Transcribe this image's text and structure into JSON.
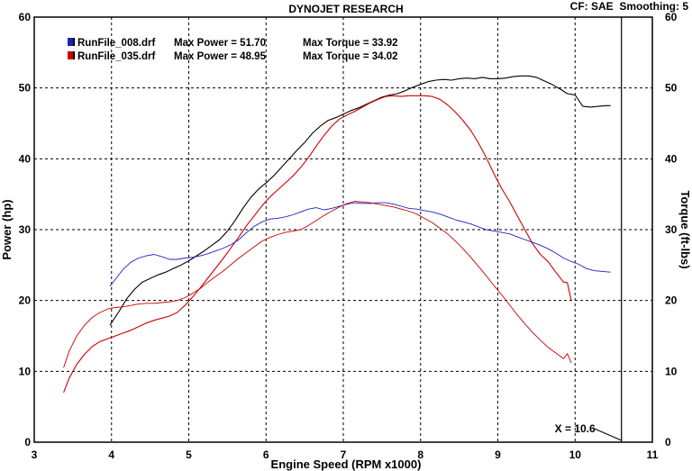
{
  "chart_data": {
    "type": "line",
    "title": "DYNOJET RESEARCH",
    "header_right": "CF: SAE  Smoothing: 5",
    "xlabel": "Engine Speed (RPM x1000)",
    "ylabel_left": "Power (hp)",
    "ylabel_right": "Torque (ft-lbs)",
    "xlim": [
      3,
      11
    ],
    "ylim": [
      0,
      60
    ],
    "x_ticks": [
      "3",
      "4",
      "5",
      "6",
      "7",
      "8",
      "9",
      "10",
      "11"
    ],
    "y_ticks": [
      "0",
      "10",
      "20",
      "30",
      "40",
      "50",
      "60"
    ],
    "grid": true,
    "legend_position": "top-left",
    "legend": [
      {
        "file": "RunFile_008.drf",
        "max_power": "Max Power = 51.70",
        "max_torque": "Max Torque = 33.92",
        "color": "#2020c0"
      },
      {
        "file": "RunFile_035.drf",
        "max_power": "Max Power = 48.95",
        "max_torque": "Max Torque = 34.02",
        "color": "#cc0000"
      }
    ],
    "cursor": {
      "label": "X = 10.6",
      "x": 10.6
    },
    "series": [
      {
        "name": "RunFile_008.drf",
        "measure": "Power",
        "color": "#000000",
        "points": [
          [
            3.98,
            16.5
          ],
          [
            4.1,
            18.5
          ],
          [
            4.2,
            20.3
          ],
          [
            4.3,
            21.6
          ],
          [
            4.4,
            22.6
          ],
          [
            4.5,
            23.1
          ],
          [
            4.6,
            23.6
          ],
          [
            4.7,
            24.0
          ],
          [
            4.8,
            24.5
          ],
          [
            4.9,
            25.0
          ],
          [
            5.0,
            25.6
          ],
          [
            5.1,
            26.3
          ],
          [
            5.2,
            27.0
          ],
          [
            5.3,
            27.8
          ],
          [
            5.4,
            28.6
          ],
          [
            5.5,
            29.8
          ],
          [
            5.6,
            31.3
          ],
          [
            5.7,
            33.0
          ],
          [
            5.8,
            34.5
          ],
          [
            5.9,
            35.7
          ],
          [
            6.0,
            36.6
          ],
          [
            6.1,
            37.6
          ],
          [
            6.2,
            38.8
          ],
          [
            6.3,
            40.0
          ],
          [
            6.4,
            41.2
          ],
          [
            6.5,
            42.3
          ],
          [
            6.6,
            43.6
          ],
          [
            6.7,
            44.6
          ],
          [
            6.8,
            45.4
          ],
          [
            6.9,
            45.8
          ],
          [
            7.0,
            46.3
          ],
          [
            7.1,
            46.8
          ],
          [
            7.2,
            47.2
          ],
          [
            7.3,
            47.7
          ],
          [
            7.4,
            48.2
          ],
          [
            7.5,
            48.7
          ],
          [
            7.6,
            49.0
          ],
          [
            7.7,
            49.2
          ],
          [
            7.8,
            49.6
          ],
          [
            7.9,
            50.1
          ],
          [
            8.0,
            50.5
          ],
          [
            8.1,
            50.9
          ],
          [
            8.2,
            51.1
          ],
          [
            8.3,
            51.2
          ],
          [
            8.4,
            51.1
          ],
          [
            8.5,
            51.3
          ],
          [
            8.6,
            51.4
          ],
          [
            8.7,
            51.3
          ],
          [
            8.8,
            51.5
          ],
          [
            8.9,
            51.3
          ],
          [
            9.0,
            51.3
          ],
          [
            9.1,
            51.4
          ],
          [
            9.2,
            51.6
          ],
          [
            9.3,
            51.7
          ],
          [
            9.4,
            51.7
          ],
          [
            9.5,
            51.5
          ],
          [
            9.6,
            51.0
          ],
          [
            9.7,
            50.5
          ],
          [
            9.8,
            49.9
          ],
          [
            9.9,
            49.2
          ],
          [
            10.0,
            49.0
          ],
          [
            10.1,
            47.4
          ],
          [
            10.2,
            47.3
          ],
          [
            10.3,
            47.4
          ],
          [
            10.4,
            47.5
          ],
          [
            10.46,
            47.5
          ]
        ]
      },
      {
        "name": "RunFile_035.drf",
        "measure": "Power",
        "color": "#cc0000",
        "points": [
          [
            3.38,
            7.0
          ],
          [
            3.45,
            9.0
          ],
          [
            3.55,
            11.0
          ],
          [
            3.65,
            12.4
          ],
          [
            3.75,
            13.5
          ],
          [
            3.85,
            14.2
          ],
          [
            3.95,
            14.6
          ],
          [
            4.05,
            15.0
          ],
          [
            4.15,
            15.4
          ],
          [
            4.25,
            15.8
          ],
          [
            4.35,
            16.3
          ],
          [
            4.45,
            16.8
          ],
          [
            4.55,
            17.2
          ],
          [
            4.65,
            17.5
          ],
          [
            4.75,
            17.8
          ],
          [
            4.85,
            18.3
          ],
          [
            4.95,
            19.3
          ],
          [
            5.05,
            20.5
          ],
          [
            5.15,
            21.8
          ],
          [
            5.25,
            23.2
          ],
          [
            5.35,
            24.6
          ],
          [
            5.45,
            26.0
          ],
          [
            5.55,
            27.5
          ],
          [
            5.65,
            29.0
          ],
          [
            5.75,
            30.6
          ],
          [
            5.85,
            32.0
          ],
          [
            5.95,
            33.4
          ],
          [
            6.05,
            34.6
          ],
          [
            6.15,
            35.6
          ],
          [
            6.25,
            36.6
          ],
          [
            6.35,
            37.6
          ],
          [
            6.45,
            38.8
          ],
          [
            6.55,
            40.2
          ],
          [
            6.65,
            41.8
          ],
          [
            6.75,
            43.3
          ],
          [
            6.85,
            44.6
          ],
          [
            6.95,
            45.6
          ],
          [
            7.05,
            46.2
          ],
          [
            7.15,
            46.7
          ],
          [
            7.25,
            47.3
          ],
          [
            7.35,
            47.9
          ],
          [
            7.45,
            48.4
          ],
          [
            7.55,
            48.8
          ],
          [
            7.65,
            48.9
          ],
          [
            7.75,
            48.8
          ],
          [
            7.85,
            48.9
          ],
          [
            7.95,
            48.9
          ],
          [
            8.05,
            48.9
          ],
          [
            8.15,
            48.8
          ],
          [
            8.25,
            48.4
          ],
          [
            8.35,
            47.6
          ],
          [
            8.45,
            46.6
          ],
          [
            8.55,
            45.4
          ],
          [
            8.65,
            44.0
          ],
          [
            8.75,
            42.2
          ],
          [
            8.85,
            40.2
          ],
          [
            8.95,
            37.9
          ],
          [
            9.05,
            35.8
          ],
          [
            9.15,
            34.0
          ],
          [
            9.25,
            32.0
          ],
          [
            9.35,
            30.0
          ],
          [
            9.45,
            28.0
          ],
          [
            9.55,
            26.5
          ],
          [
            9.65,
            25.5
          ],
          [
            9.75,
            24.0
          ],
          [
            9.85,
            22.6
          ],
          [
            9.9,
            22.5
          ],
          [
            9.95,
            20.0
          ]
        ]
      },
      {
        "name": "RunFile_008.drf",
        "measure": "Torque",
        "color": "#2020c0",
        "points": [
          [
            3.98,
            22.0
          ],
          [
            4.05,
            23.0
          ],
          [
            4.15,
            24.4
          ],
          [
            4.25,
            25.4
          ],
          [
            4.35,
            26.0
          ],
          [
            4.45,
            26.3
          ],
          [
            4.55,
            26.5
          ],
          [
            4.65,
            26.2
          ],
          [
            4.75,
            25.8
          ],
          [
            4.85,
            25.8
          ],
          [
            4.95,
            26.0
          ],
          [
            5.05,
            26.1
          ],
          [
            5.15,
            26.3
          ],
          [
            5.25,
            26.6
          ],
          [
            5.35,
            27.0
          ],
          [
            5.45,
            27.4
          ],
          [
            5.55,
            27.9
          ],
          [
            5.65,
            28.6
          ],
          [
            5.75,
            29.6
          ],
          [
            5.85,
            30.5
          ],
          [
            5.95,
            31.1
          ],
          [
            6.05,
            31.5
          ],
          [
            6.15,
            31.6
          ],
          [
            6.25,
            31.8
          ],
          [
            6.35,
            32.1
          ],
          [
            6.45,
            32.5
          ],
          [
            6.55,
            32.9
          ],
          [
            6.65,
            33.1
          ],
          [
            6.75,
            32.8
          ],
          [
            6.85,
            33.0
          ],
          [
            6.95,
            33.3
          ],
          [
            7.05,
            33.6
          ],
          [
            7.15,
            33.8
          ],
          [
            7.25,
            33.7
          ],
          [
            7.35,
            33.7
          ],
          [
            7.45,
            33.8
          ],
          [
            7.55,
            33.8
          ],
          [
            7.65,
            33.6
          ],
          [
            7.75,
            33.3
          ],
          [
            7.85,
            33.0
          ],
          [
            7.95,
            32.9
          ],
          [
            8.05,
            32.7
          ],
          [
            8.15,
            32.5
          ],
          [
            8.25,
            32.2
          ],
          [
            8.35,
            31.8
          ],
          [
            8.45,
            31.4
          ],
          [
            8.55,
            31.1
          ],
          [
            8.65,
            30.8
          ],
          [
            8.75,
            30.4
          ],
          [
            8.85,
            30.0
          ],
          [
            8.95,
            29.8
          ],
          [
            9.05,
            29.6
          ],
          [
            9.15,
            29.4
          ],
          [
            9.25,
            29.0
          ],
          [
            9.35,
            28.6
          ],
          [
            9.45,
            28.2
          ],
          [
            9.55,
            27.8
          ],
          [
            9.65,
            27.3
          ],
          [
            9.75,
            26.7
          ],
          [
            9.85,
            26.0
          ],
          [
            9.95,
            25.5
          ],
          [
            10.05,
            25.1
          ],
          [
            10.15,
            24.5
          ],
          [
            10.25,
            24.2
          ],
          [
            10.35,
            24.1
          ],
          [
            10.46,
            24.0
          ]
        ]
      },
      {
        "name": "RunFile_035.drf",
        "measure": "Torque",
        "color": "#cc0000",
        "points": [
          [
            3.38,
            10.5
          ],
          [
            3.45,
            12.8
          ],
          [
            3.55,
            15.0
          ],
          [
            3.65,
            16.5
          ],
          [
            3.75,
            17.6
          ],
          [
            3.85,
            18.3
          ],
          [
            3.95,
            18.8
          ],
          [
            4.05,
            19.0
          ],
          [
            4.15,
            19.1
          ],
          [
            4.25,
            19.3
          ],
          [
            4.35,
            19.5
          ],
          [
            4.45,
            19.6
          ],
          [
            4.55,
            19.6
          ],
          [
            4.65,
            19.7
          ],
          [
            4.75,
            19.8
          ],
          [
            4.85,
            20.0
          ],
          [
            4.95,
            20.4
          ],
          [
            5.05,
            21.0
          ],
          [
            5.15,
            21.7
          ],
          [
            5.25,
            22.6
          ],
          [
            5.35,
            23.4
          ],
          [
            5.45,
            24.2
          ],
          [
            5.55,
            25.1
          ],
          [
            5.65,
            26.0
          ],
          [
            5.75,
            26.8
          ],
          [
            5.85,
            27.6
          ],
          [
            5.95,
            28.4
          ],
          [
            6.05,
            28.9
          ],
          [
            6.15,
            29.3
          ],
          [
            6.25,
            29.6
          ],
          [
            6.35,
            29.8
          ],
          [
            6.45,
            30.0
          ],
          [
            6.55,
            30.6
          ],
          [
            6.65,
            31.3
          ],
          [
            6.75,
            32.0
          ],
          [
            6.85,
            32.6
          ],
          [
            6.95,
            33.2
          ],
          [
            7.05,
            33.7
          ],
          [
            7.15,
            34.0
          ],
          [
            7.25,
            33.9
          ],
          [
            7.35,
            33.8
          ],
          [
            7.45,
            33.6
          ],
          [
            7.55,
            33.4
          ],
          [
            7.65,
            33.2
          ],
          [
            7.75,
            32.9
          ],
          [
            7.85,
            32.6
          ],
          [
            7.95,
            32.2
          ],
          [
            8.05,
            31.6
          ],
          [
            8.15,
            31.0
          ],
          [
            8.25,
            30.2
          ],
          [
            8.35,
            29.4
          ],
          [
            8.45,
            28.4
          ],
          [
            8.55,
            27.3
          ],
          [
            8.65,
            26.1
          ],
          [
            8.75,
            24.8
          ],
          [
            8.85,
            23.5
          ],
          [
            8.95,
            22.1
          ],
          [
            9.05,
            20.8
          ],
          [
            9.15,
            19.4
          ],
          [
            9.25,
            18.0
          ],
          [
            9.35,
            16.7
          ],
          [
            9.45,
            15.5
          ],
          [
            9.55,
            14.4
          ],
          [
            9.65,
            13.4
          ],
          [
            9.75,
            12.6
          ],
          [
            9.85,
            11.8
          ],
          [
            9.9,
            12.5
          ],
          [
            9.95,
            11.2
          ]
        ]
      }
    ]
  }
}
